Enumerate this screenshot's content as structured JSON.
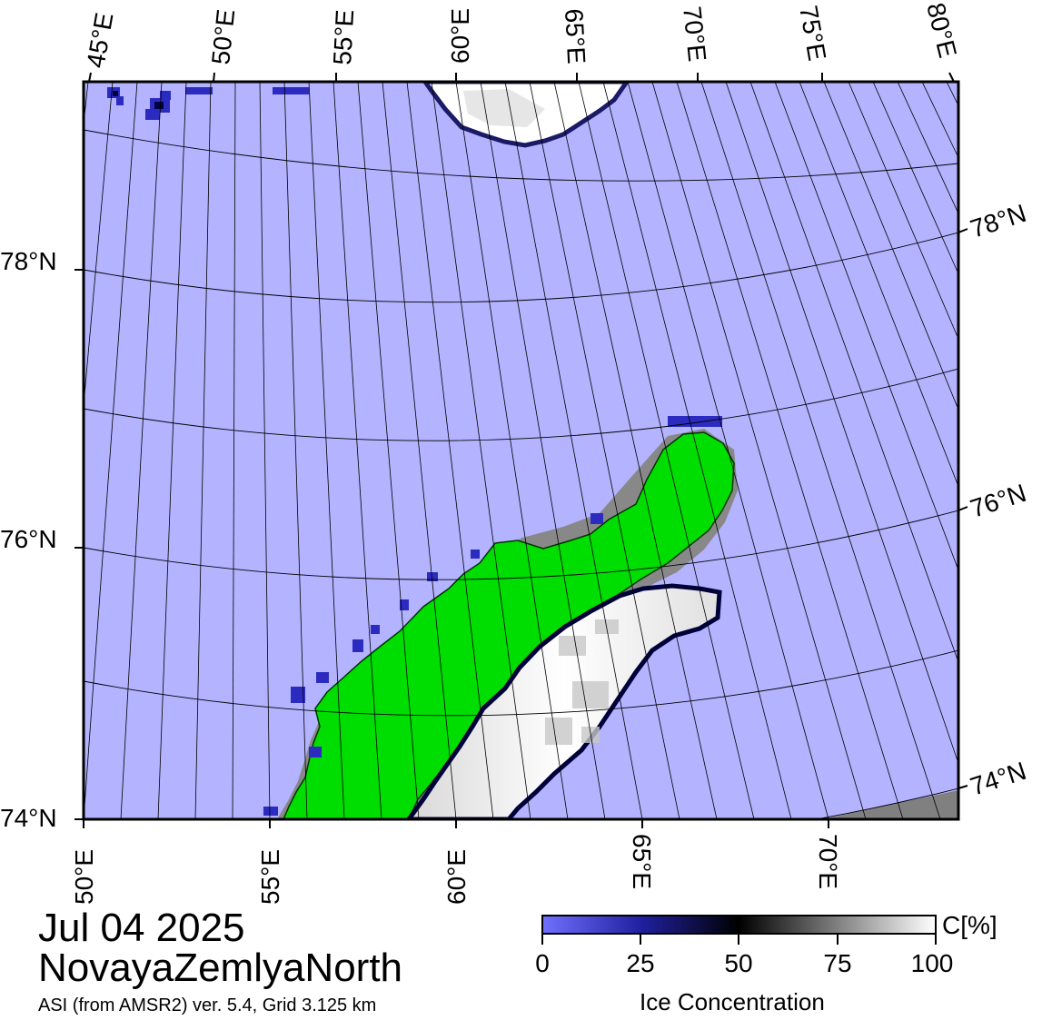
{
  "map": {
    "top_lon_labels": [
      "45°E",
      "50°E",
      "55°E",
      "60°E",
      "65°E",
      "70°E",
      "75°E",
      "80°E"
    ],
    "bottom_lon_labels": [
      "50°E",
      "55°E",
      "60°E",
      "65°E",
      "70°E"
    ],
    "left_lat_labels": [
      "78°N",
      "76°N",
      "74°N"
    ],
    "right_lat_labels": [
      "78°N",
      "76°N",
      "74°N"
    ],
    "colors": {
      "open_water": "#b3b3ff",
      "land": "#00dd00",
      "ice_high": "#ffffff",
      "ice_low": "#2b2bc0",
      "no_data": "#808080",
      "grid": "#000000"
    }
  },
  "colorbar": {
    "ticks": [
      "0",
      "25",
      "50",
      "75",
      "100"
    ],
    "unit": "C[%]",
    "title": "Ice Concentration",
    "gradient": [
      "#7070ff",
      "#2020a0",
      "#000000",
      "#808080",
      "#ffffff"
    ]
  },
  "caption": {
    "date": "Jul 04 2025",
    "region": "NovayaZemlyaNorth",
    "source": "ASI (from AMSR2) ver. 5.4,  Grid 3.125 km"
  }
}
